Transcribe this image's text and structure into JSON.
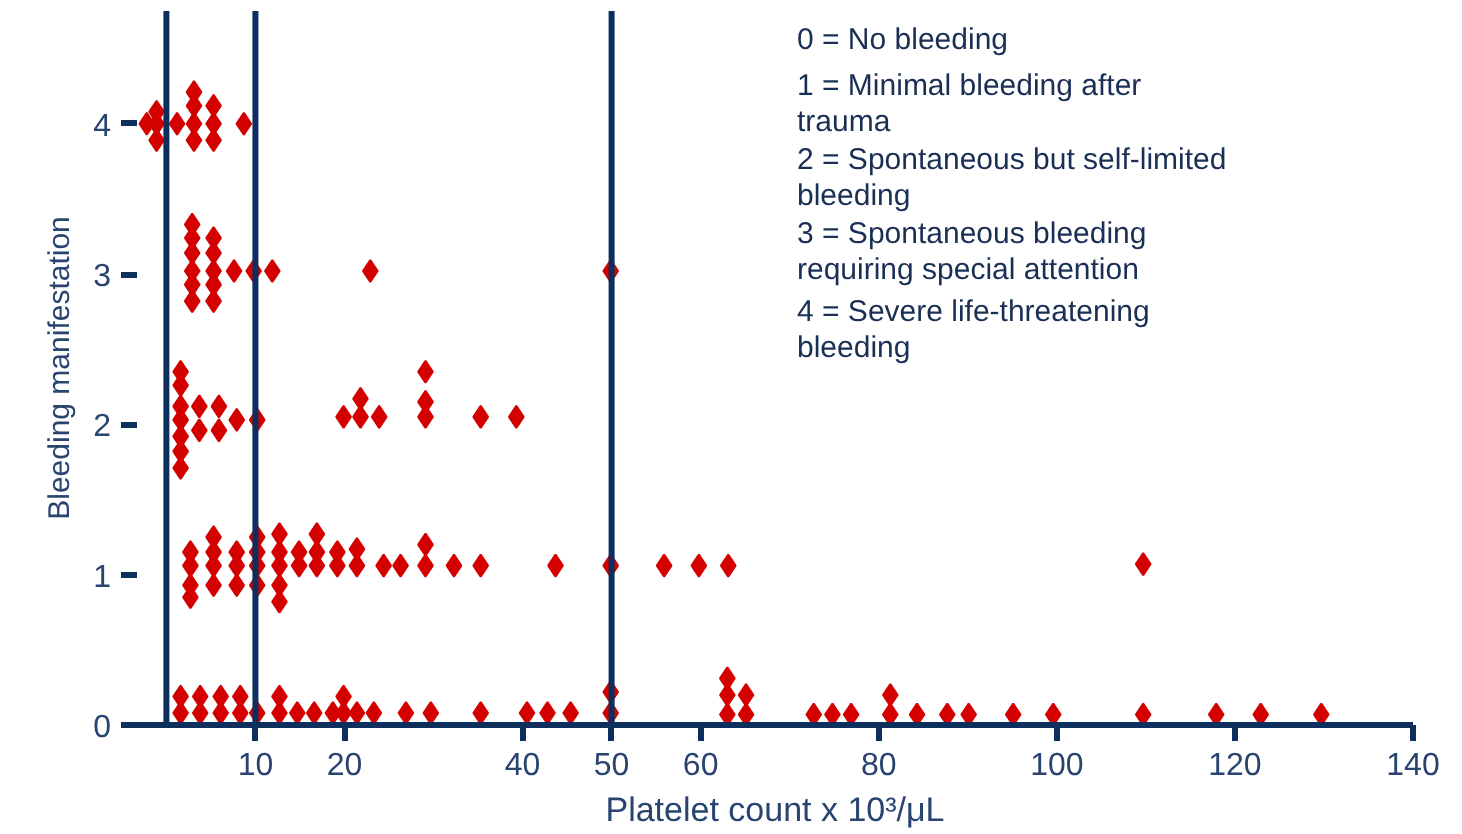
{
  "chart_data": {
    "type": "scatter",
    "xlabel": "Platelet count x 10³/μL",
    "ylabel": "Bleeding manifestation",
    "annotations": [
      "0 =  No bleeding",
      "1 =  Minimal bleeding after\n       trauma",
      "2 =  Spontaneous but self-limited\n       bleeding",
      "3 =  Spontaneous bleeding\n       requiring special attention",
      "4 =  Severe life-threatening\n       bleeding"
    ],
    "x": [
      -2.2,
      -1.1,
      -1.1,
      -1.1,
      1.2,
      3.1,
      3.1,
      5.3,
      3.1,
      5.3,
      3.1,
      5.3,
      8.7,
      2.9,
      2.9,
      2.9,
      2.9,
      2.9,
      2.9,
      5.3,
      5.3,
      5.3,
      5.3,
      5.3,
      7.6,
      9.8,
      11.9,
      22.9,
      49.9,
      1.6,
      1.6,
      1.6,
      1.6,
      1.6,
      1.6,
      1.6,
      3.7,
      3.7,
      5.9,
      5.9,
      7.9,
      10.2,
      19.9,
      21.8,
      21.8,
      23.9,
      29.1,
      29.1,
      29.1,
      35.3,
      39.3,
      2.7,
      2.7,
      2.7,
      2.7,
      5.3,
      5.3,
      5.3,
      5.3,
      7.9,
      7.9,
      7.9,
      10.2,
      10.2,
      10.2,
      10.2,
      12.7,
      12.7,
      12.7,
      12.7,
      12.7,
      14.9,
      14.9,
      16.9,
      16.9,
      16.9,
      19.2,
      19.2,
      21.4,
      21.4,
      24.4,
      26.3,
      29.1,
      29.1,
      32.3,
      35.3,
      43.7,
      49.9,
      55.9,
      59.8,
      63.1,
      109.7,
      1.6,
      1.6,
      3.8,
      3.8,
      6.1,
      6.1,
      8.3,
      8.3,
      10.2,
      12.7,
      12.7,
      14.7,
      16.6,
      18.7,
      19.9,
      19.9,
      21.4,
      23.3,
      26.9,
      29.7,
      35.3,
      40.5,
      42.8,
      45.4,
      49.9,
      49.9,
      63.0,
      63.0,
      63.0,
      65.1,
      65.1,
      72.7,
      74.8,
      76.9,
      81.3,
      81.3,
      84.3,
      87.7,
      90.1,
      95.1,
      99.6,
      109.7,
      117.9,
      122.9,
      129.7
    ],
    "values": [
      4.0,
      4.08,
      4.0,
      3.89,
      4.0,
      4.21,
      4.12,
      4.12,
      4.0,
      4.0,
      3.89,
      3.89,
      4.0,
      3.33,
      3.24,
      3.14,
      3.02,
      2.93,
      2.82,
      3.24,
      3.14,
      3.02,
      2.93,
      2.82,
      3.02,
      3.02,
      3.02,
      3.02,
      3.02,
      2.35,
      2.26,
      2.12,
      2.03,
      1.92,
      1.82,
      1.71,
      2.12,
      1.96,
      2.12,
      1.96,
      2.03,
      2.03,
      2.05,
      2.17,
      2.05,
      2.05,
      2.35,
      2.15,
      2.05,
      2.05,
      2.05,
      1.15,
      1.06,
      0.93,
      0.85,
      1.25,
      1.15,
      1.06,
      0.93,
      1.15,
      1.06,
      0.93,
      1.25,
      1.15,
      1.06,
      0.93,
      1.27,
      1.15,
      1.06,
      0.93,
      0.82,
      1.15,
      1.06,
      1.27,
      1.15,
      1.06,
      1.15,
      1.06,
      1.17,
      1.06,
      1.06,
      1.06,
      1.2,
      1.06,
      1.06,
      1.06,
      1.06,
      1.06,
      1.06,
      1.06,
      1.06,
      1.07,
      0.19,
      0.08,
      0.19,
      0.08,
      0.19,
      0.08,
      0.19,
      0.08,
      0.08,
      0.19,
      0.08,
      0.08,
      0.08,
      0.08,
      0.19,
      0.08,
      0.08,
      0.08,
      0.08,
      0.08,
      0.08,
      0.08,
      0.08,
      0.08,
      0.22,
      0.08,
      0.31,
      0.2,
      0.07,
      0.2,
      0.07,
      0.07,
      0.07,
      0.07,
      0.2,
      0.07,
      0.07,
      0.07,
      0.07,
      0.07,
      0.07,
      0.07,
      0.07,
      0.07,
      0.07
    ],
    "color": "#d40000",
    "marker": "diamond",
    "grid": false,
    "xlim": [
      -3.3,
      140
    ],
    "ylim": [
      0,
      4.75
    ],
    "xticks": [
      10,
      20,
      40,
      50,
      60,
      80,
      100,
      120,
      140
    ],
    "yticks": [
      0,
      1,
      2,
      3,
      4
    ],
    "ref_lines": [
      {
        "axis": "x",
        "value": 0,
        "color": "#0d2f5e"
      },
      {
        "axis": "x",
        "value": 10,
        "color": "#0d2f5e"
      },
      {
        "axis": "x",
        "value": 50,
        "color": "#0d2f5e"
      }
    ]
  }
}
